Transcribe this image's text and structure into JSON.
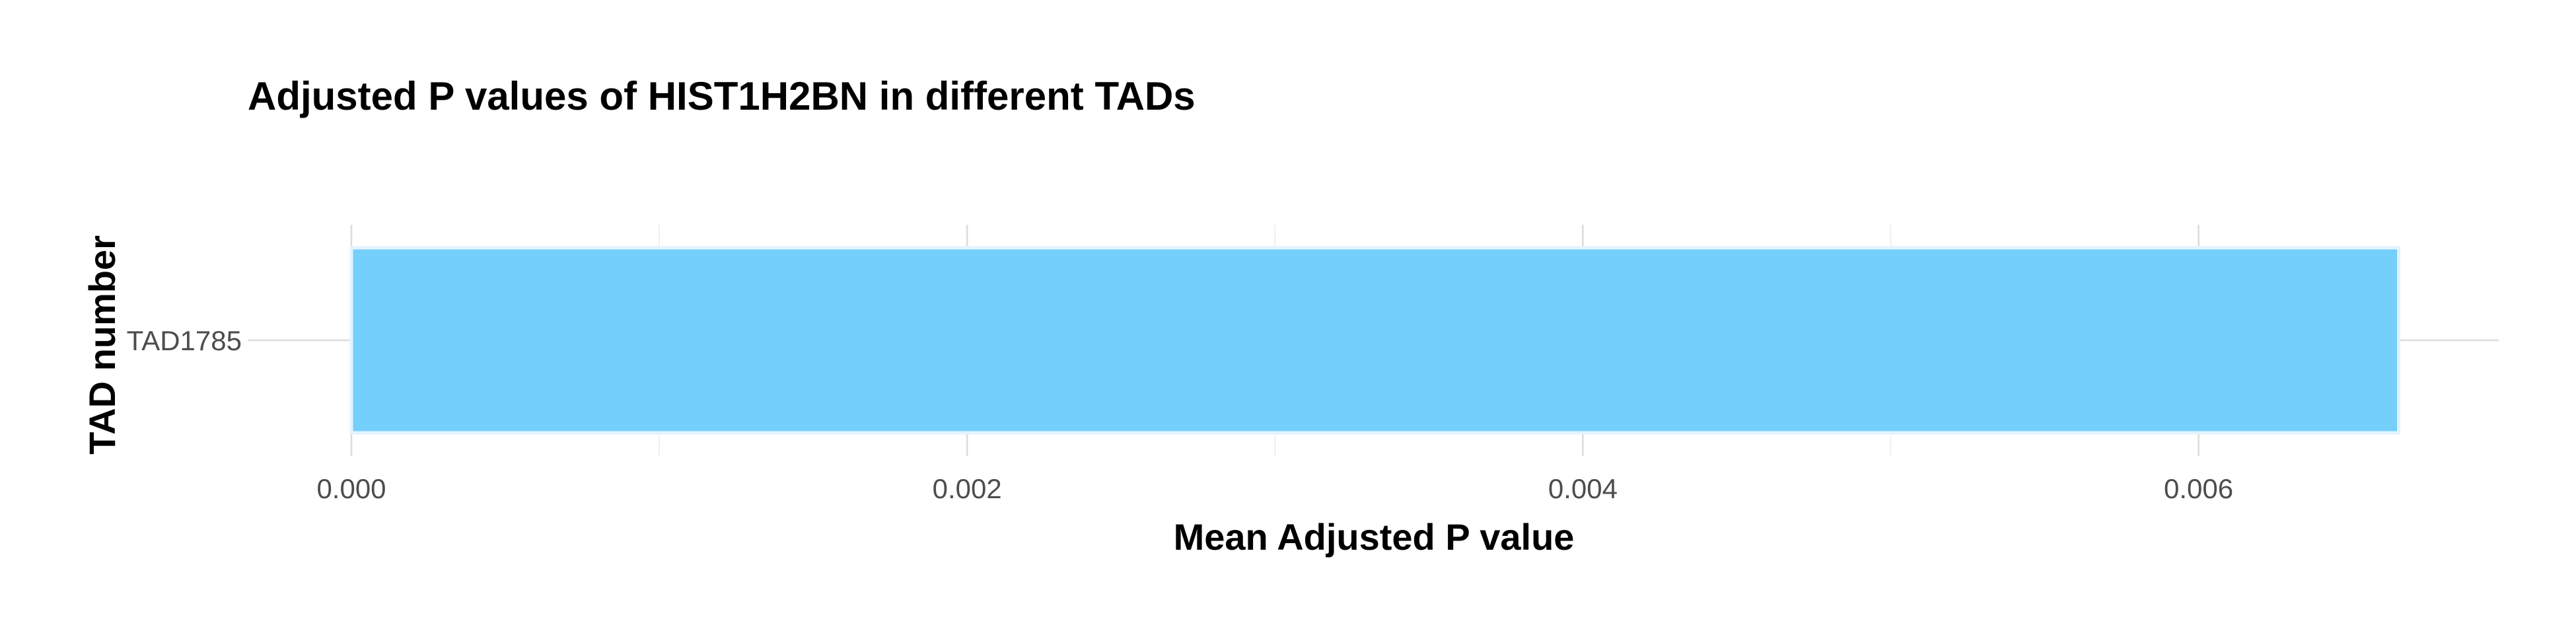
{
  "chart_data": {
    "type": "bar",
    "orientation": "horizontal",
    "title": "Adjusted P values of HIST1H2BN in different TADs",
    "xlabel": "Mean Adjusted P value",
    "ylabel": "TAD number",
    "categories": [
      "TAD1785"
    ],
    "values": [
      0.00665
    ],
    "xlim": [
      0,
      0.007
    ],
    "xticks": [
      0,
      0.002,
      0.004,
      0.006
    ],
    "xtick_labels": [
      "0.000",
      "0.002",
      "0.004",
      "0.006"
    ],
    "grid": true,
    "legend": "none",
    "bar_color": "#74CFFB",
    "bar_border_color": "#E3F3FD"
  }
}
